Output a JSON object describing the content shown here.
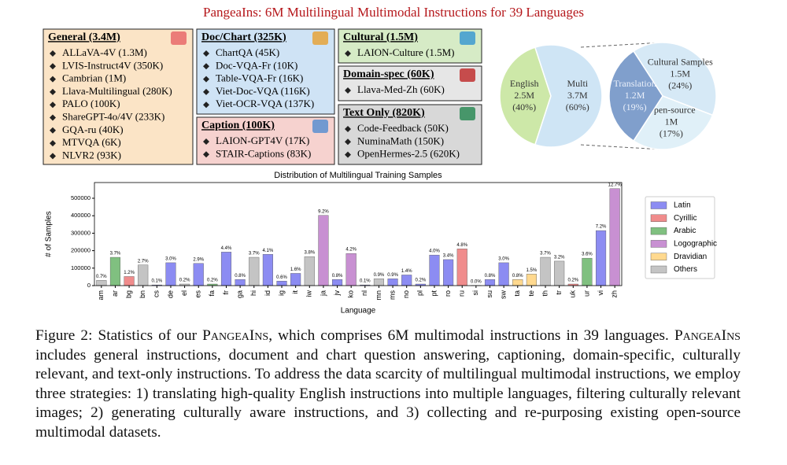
{
  "title": "PangeaIns: 6M Multilingual Multimodal Instructions for 39 Languages",
  "boxes": [
    {
      "title": "General (3.4M)",
      "items": [
        "ALLaVA-4V (1.3M)",
        "LVIS-Instruct4V (350K)",
        "Cambrian (1M)",
        "Llava-Multilingual (280K)",
        "PALO (100K)",
        "ShareGPT-4o/4V (233K)",
        "GQA-ru (40K)",
        "MTVQA (6K)",
        "NLVR2 (93K)"
      ]
    },
    {
      "title": "Doc/Chart (325K)",
      "items": [
        "ChartQA (45K)",
        "Doc-VQA-Fr (10K)",
        "Table-VQA-Fr (16K)",
        "Viet-Doc-VQA (116K)",
        "Viet-OCR-VQA (137K)"
      ]
    },
    {
      "title": "Caption (100K)",
      "items": [
        "LAION-GPT4V (17K)",
        "STAIR-Captions (83K)"
      ]
    },
    {
      "title": "Cultural (1.5M)",
      "items": [
        "LAION-Culture (1.5M)"
      ]
    },
    {
      "title": "Domain-spec (60K)",
      "items": [
        "Llava-Med-Zh (60K)"
      ]
    },
    {
      "title": "Text Only (820K)",
      "items": [
        "Code-Feedback (50K)",
        "NuminaMath (150K)",
        "OpenHermes-2.5 (620K)"
      ]
    }
  ],
  "chart_data": [
    {
      "type": "pie",
      "categories": [
        "English",
        "Multi"
      ],
      "amounts": [
        "2.5M",
        "3.7M"
      ],
      "values": [
        40,
        60
      ],
      "value_labels": [
        "(40%)",
        "(60%)"
      ],
      "colors": [
        "#cde8a8",
        "#cfe5f5"
      ]
    },
    {
      "type": "pie",
      "categories": [
        "Cultural Samples",
        "Open-source",
        "Translation"
      ],
      "amounts": [
        "1.5M",
        "1M",
        "1.2M"
      ],
      "values": [
        24,
        17,
        19
      ],
      "value_labels": [
        "(24%)",
        "(17%)",
        "(19%)"
      ],
      "colors": [
        "#d6e9f6",
        "#e0f0f8",
        "#809fcc"
      ]
    },
    {
      "type": "bar",
      "title": "Distribution of Multilingual Training Samples",
      "x_label": "Language",
      "y_label": "# of Samples",
      "categories": [
        "am",
        "ar",
        "bg",
        "bn",
        "cs",
        "de",
        "el",
        "es",
        "fa",
        "fr",
        "ga",
        "hi",
        "id",
        "ig",
        "it",
        "iw",
        "ja",
        "jv",
        "ko",
        "nl",
        "mn",
        "ms",
        "no",
        "pl",
        "pt",
        "ro",
        "ru",
        "si",
        "su",
        "sw",
        "ta",
        "te",
        "th",
        "tr",
        "uk",
        "ur",
        "vi",
        "zh"
      ],
      "ylim": [
        0,
        590000
      ],
      "yticks": [
        0,
        100000,
        200000,
        300000,
        400000,
        500000
      ],
      "legend": "right",
      "series": [
        {
          "name": "Latin",
          "color": "#8c8cf2",
          "values": [
            null,
            null,
            null,
            null,
            4000,
            131000,
            null,
            127000,
            null,
            192000,
            35000,
            null,
            179000,
            26000,
            70000,
            null,
            null,
            35000,
            null,
            4000,
            null,
            39000,
            61000,
            9000,
            175000,
            149000,
            null,
            null,
            35000,
            131000,
            null,
            null,
            null,
            null,
            null,
            null,
            315000,
            null
          ],
          "value_labels": [
            null,
            null,
            null,
            null,
            "0.1%",
            "3.0%",
            null,
            "2.9%",
            null,
            "4.4%",
            "0.8%",
            null,
            "4.1%",
            "0.6%",
            "1.6%",
            null,
            null,
            "0.8%",
            null,
            "0.1%",
            null,
            "0.9%",
            "1.4%",
            "0.2%",
            "4.0%",
            "3.4%",
            null,
            null,
            "0.8%",
            "3.0%",
            null,
            null,
            null,
            null,
            null,
            null,
            "7.2%",
            null
          ]
        },
        {
          "name": "Cyrillic",
          "color": "#f08c8c",
          "values": [
            null,
            null,
            52000,
            null,
            null,
            null,
            null,
            null,
            null,
            null,
            null,
            null,
            null,
            null,
            null,
            null,
            null,
            null,
            null,
            null,
            null,
            null,
            null,
            null,
            null,
            null,
            210000,
            null,
            null,
            null,
            null,
            null,
            null,
            null,
            9000,
            null,
            null,
            null
          ],
          "value_labels": [
            null,
            null,
            "1.2%",
            null,
            null,
            null,
            null,
            null,
            null,
            null,
            null,
            null,
            null,
            null,
            null,
            null,
            null,
            null,
            null,
            null,
            null,
            null,
            null,
            null,
            null,
            null,
            "4.8%",
            null,
            null,
            null,
            null,
            null,
            null,
            null,
            "0.2%",
            null,
            null,
            null
          ]
        },
        {
          "name": "Arabic",
          "color": "#80c080",
          "values": [
            null,
            162000,
            null,
            null,
            null,
            null,
            null,
            null,
            9000,
            null,
            null,
            null,
            null,
            null,
            null,
            null,
            null,
            null,
            null,
            null,
            null,
            null,
            null,
            null,
            null,
            null,
            null,
            null,
            null,
            null,
            null,
            null,
            null,
            null,
            null,
            157000,
            null,
            null
          ],
          "value_labels": [
            null,
            "3.7%",
            null,
            null,
            null,
            null,
            null,
            null,
            "0.2%",
            null,
            null,
            null,
            null,
            null,
            null,
            null,
            null,
            null,
            null,
            null,
            null,
            null,
            null,
            null,
            null,
            null,
            null,
            null,
            null,
            null,
            null,
            null,
            null,
            null,
            null,
            "3.6%",
            null,
            null
          ]
        },
        {
          "name": "Logographic",
          "color": "#c890d2",
          "values": [
            null,
            null,
            null,
            null,
            null,
            null,
            null,
            null,
            null,
            null,
            null,
            null,
            null,
            null,
            null,
            null,
            402000,
            null,
            184000,
            null,
            null,
            null,
            null,
            null,
            null,
            null,
            null,
            null,
            null,
            null,
            null,
            null,
            null,
            null,
            null,
            null,
            null,
            555000
          ],
          "value_labels": [
            null,
            null,
            null,
            null,
            null,
            null,
            null,
            null,
            null,
            null,
            null,
            null,
            null,
            null,
            null,
            null,
            "9.2%",
            null,
            "4.2%",
            null,
            null,
            null,
            null,
            null,
            null,
            null,
            null,
            null,
            null,
            null,
            null,
            null,
            null,
            null,
            null,
            null,
            null,
            "12.7%"
          ]
        },
        {
          "name": "Dravidian",
          "color": "#ffd98f",
          "values": [
            null,
            null,
            null,
            null,
            null,
            null,
            null,
            null,
            null,
            null,
            null,
            null,
            null,
            null,
            null,
            null,
            null,
            null,
            null,
            null,
            null,
            null,
            null,
            null,
            null,
            null,
            null,
            null,
            null,
            null,
            35000,
            66000,
            null,
            null,
            null,
            null,
            null,
            null
          ],
          "value_labels": [
            null,
            null,
            null,
            null,
            null,
            null,
            null,
            null,
            null,
            null,
            null,
            null,
            null,
            null,
            null,
            null,
            null,
            null,
            null,
            null,
            null,
            null,
            null,
            null,
            null,
            null,
            null,
            null,
            null,
            null,
            "0.8%",
            "1.5%",
            null,
            null,
            null,
            null,
            null,
            null
          ]
        },
        {
          "name": "Others",
          "color": "#c4c4c4",
          "values": [
            30000,
            null,
            null,
            118000,
            null,
            null,
            9000,
            null,
            null,
            null,
            null,
            162000,
            null,
            null,
            null,
            166000,
            null,
            null,
            null,
            null,
            39000,
            null,
            null,
            null,
            null,
            null,
            null,
            1000,
            null,
            null,
            null,
            null,
            162000,
            140000,
            null,
            null,
            null,
            null
          ],
          "value_labels": [
            "0.7%",
            null,
            null,
            "2.7%",
            null,
            null,
            "0.2%",
            null,
            null,
            null,
            null,
            "3.7%",
            null,
            null,
            null,
            "3.8%",
            null,
            null,
            null,
            null,
            "0.9%",
            null,
            null,
            null,
            null,
            null,
            null,
            "0.0%",
            null,
            null,
            null,
            null,
            "3.7%",
            "3.2%",
            null,
            null,
            null,
            null
          ]
        }
      ]
    }
  ],
  "caption": [
    {
      "text": "Figure 2: Statistics of our "
    },
    {
      "text": "PangeaIns",
      "small_caps": true
    },
    {
      "text": ", which comprises 6M multimodal instructions in 39 languages. "
    },
    {
      "text": "PangeaIns",
      "small_caps": true
    },
    {
      "text": " includes general instructions, document and chart question answering, captioning, domain-specific, culturally relevant, and text-only instructions. To address the data scarcity of multilingual multimodal instructions, we employ three strategies: 1) translating high-quality English instructions into multiple languages, filtering culturally relevant images; 2) generating culturally aware instructions, and 3) collecting and re-purposing existing open-source multimodal datasets."
    }
  ]
}
